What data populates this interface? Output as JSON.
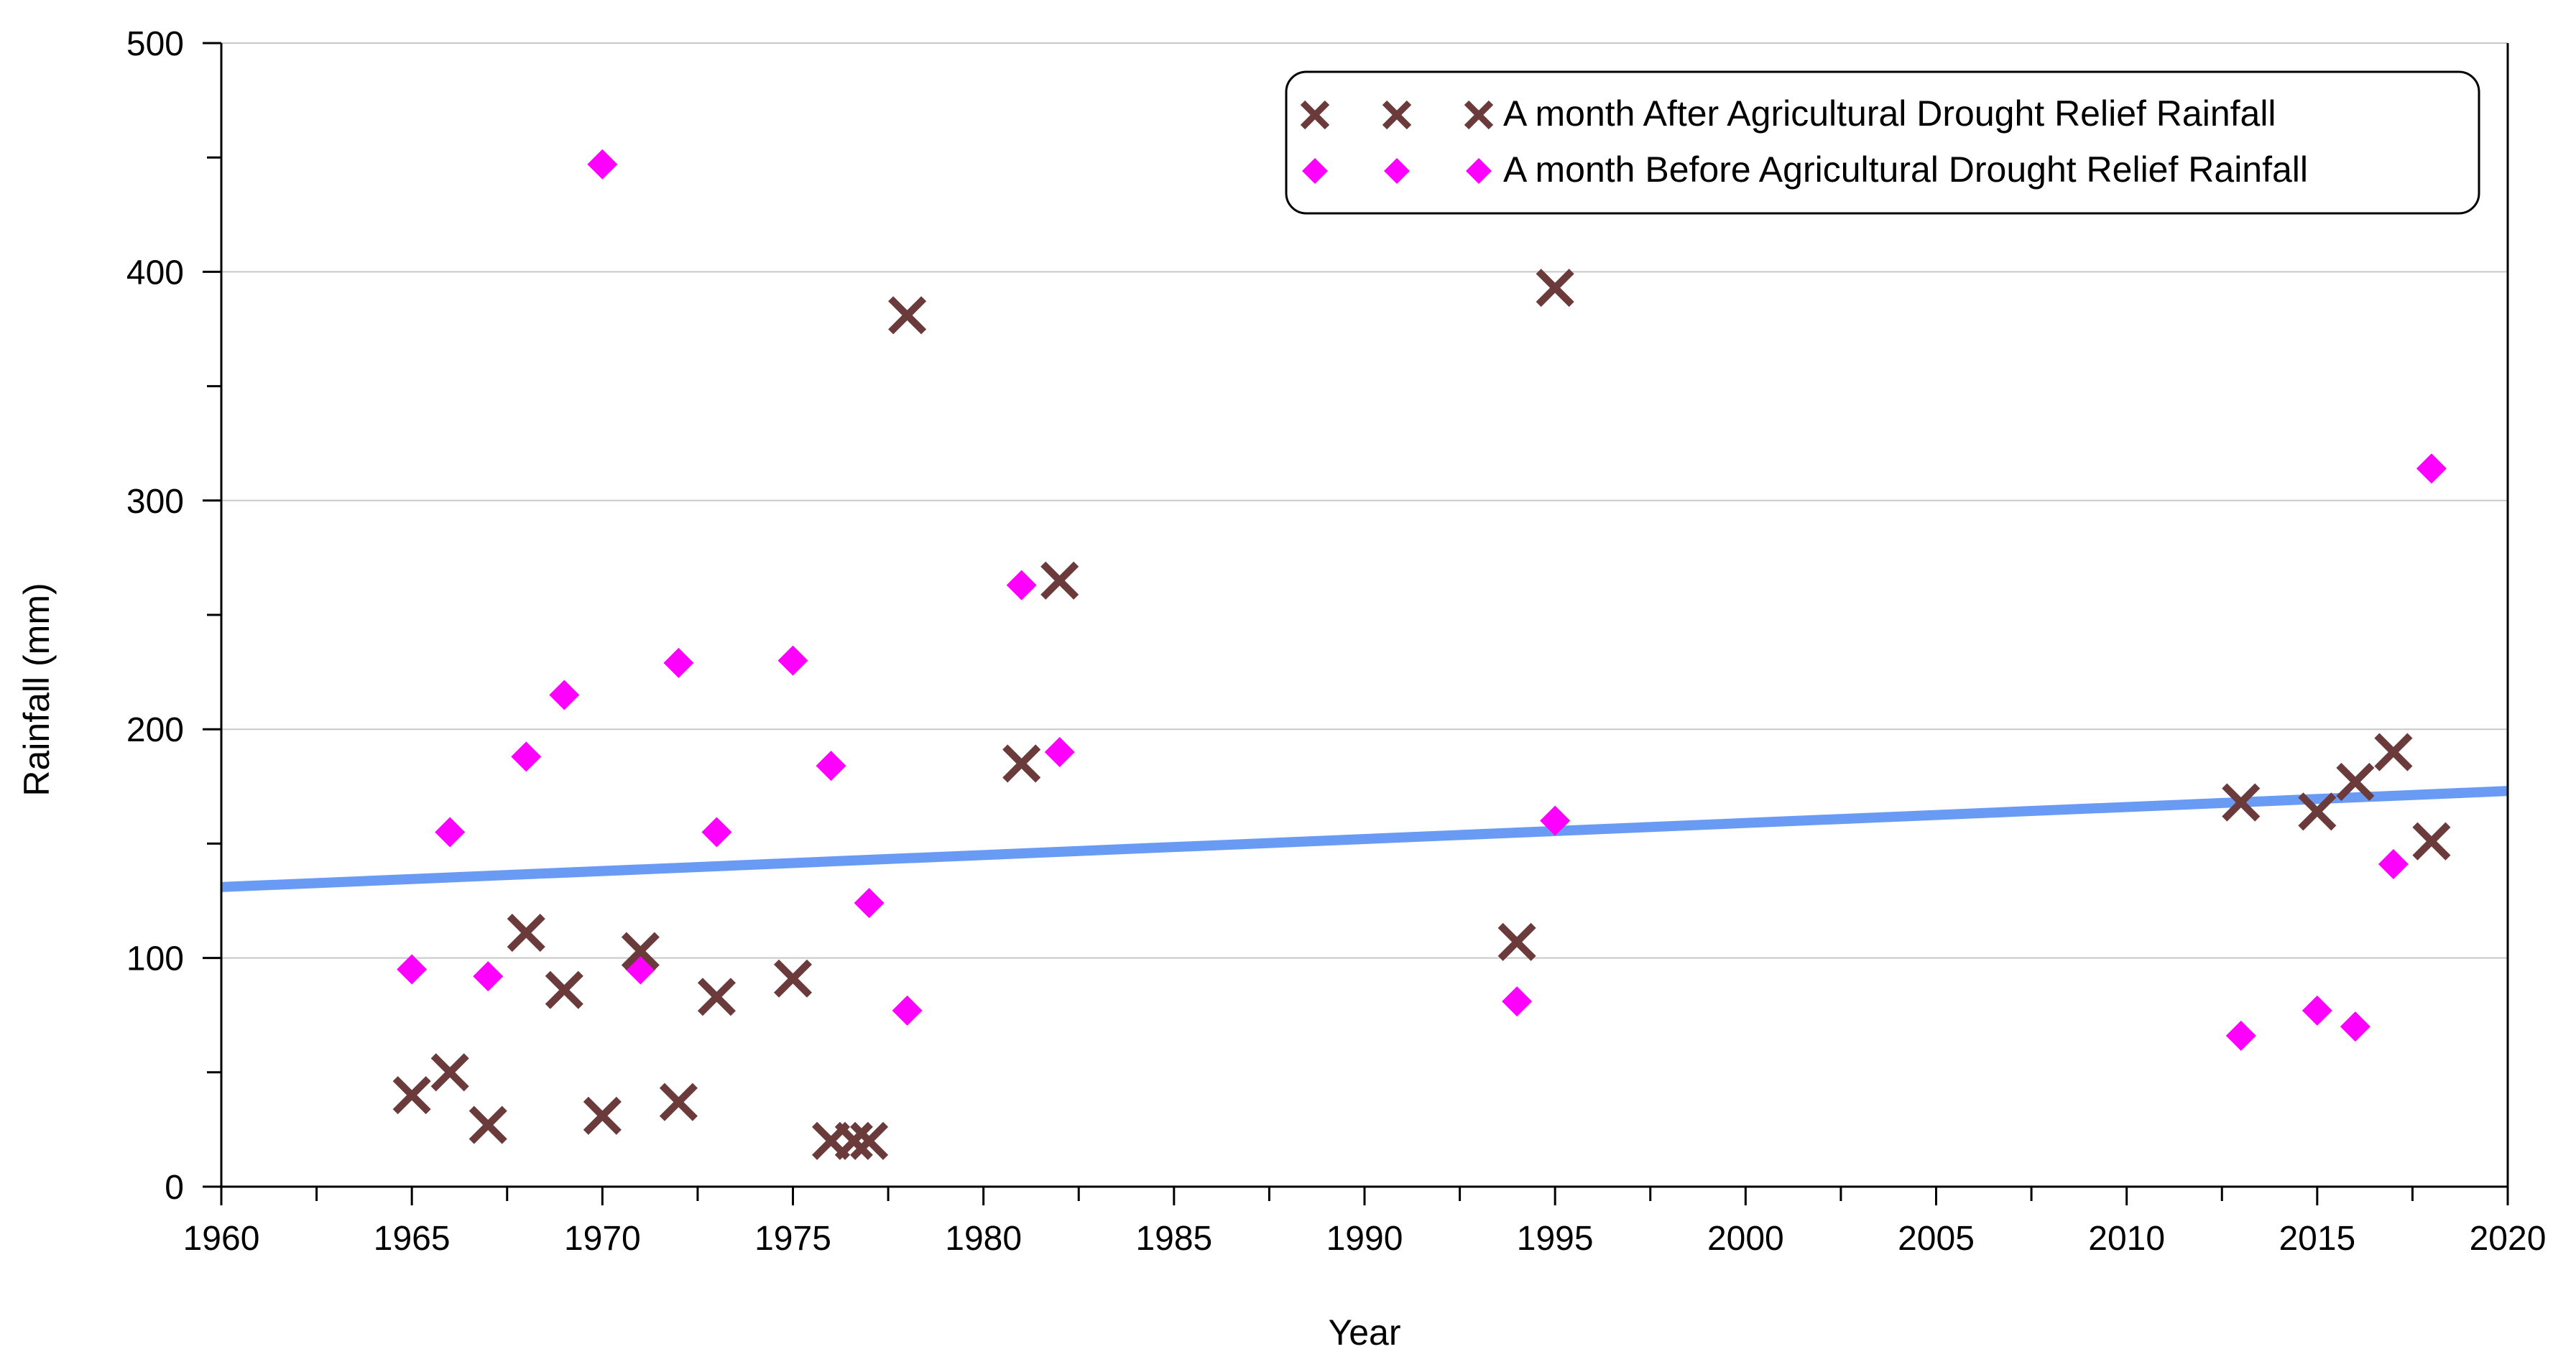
{
  "chart_data": {
    "type": "scatter",
    "title": "",
    "xlabel": "Year",
    "ylabel": "Rainfall (mm)",
    "xlim": [
      1960,
      2020
    ],
    "ylim": [
      0,
      500
    ],
    "x_ticks": [
      1960,
      1965,
      1970,
      1975,
      1980,
      1985,
      1990,
      1995,
      2000,
      2005,
      2010,
      2015,
      2020
    ],
    "y_ticks": [
      0,
      100,
      200,
      300,
      400,
      500
    ],
    "grid": "horizontal",
    "legend_position": "top-right",
    "series": [
      {
        "name": "A month After Agricultural Drought Relief Rainfall",
        "marker": "x",
        "color": "#6b3a3a",
        "points": [
          [
            1965,
            40
          ],
          [
            1966,
            50
          ],
          [
            1967,
            27
          ],
          [
            1968,
            111
          ],
          [
            1969,
            86
          ],
          [
            1970,
            31
          ],
          [
            1971,
            103
          ],
          [
            1972,
            37
          ],
          [
            1973,
            83
          ],
          [
            1975,
            91
          ],
          [
            1976,
            20
          ],
          [
            1976.6,
            20
          ],
          [
            1977,
            20
          ],
          [
            1978,
            381
          ],
          [
            1981,
            185
          ],
          [
            1982,
            265
          ],
          [
            1994,
            107
          ],
          [
            1995,
            393
          ],
          [
            2013,
            168
          ],
          [
            2015,
            164
          ],
          [
            2016,
            177
          ],
          [
            2017,
            190
          ],
          [
            2018,
            151
          ]
        ]
      },
      {
        "name": "A month Before Agricultural Drought Relief Rainfall",
        "marker": "diamond",
        "color": "#ff00ff",
        "points": [
          [
            1965,
            95
          ],
          [
            1966,
            155
          ],
          [
            1967,
            92
          ],
          [
            1968,
            188
          ],
          [
            1969,
            215
          ],
          [
            1970,
            447
          ],
          [
            1971,
            95
          ],
          [
            1972,
            229
          ],
          [
            1973,
            155
          ],
          [
            1975,
            230
          ],
          [
            1976,
            184
          ],
          [
            1977,
            124
          ],
          [
            1978,
            77
          ],
          [
            1981,
            263
          ],
          [
            1982,
            190
          ],
          [
            1994,
            81
          ],
          [
            1995,
            160
          ],
          [
            2013,
            66
          ],
          [
            2015,
            77
          ],
          [
            2016,
            70
          ],
          [
            2017,
            141
          ],
          [
            2018,
            314
          ]
        ]
      }
    ],
    "trendline": {
      "color": "#6a9bf4",
      "start": [
        1960,
        131
      ],
      "end": [
        2020,
        173
      ]
    }
  }
}
